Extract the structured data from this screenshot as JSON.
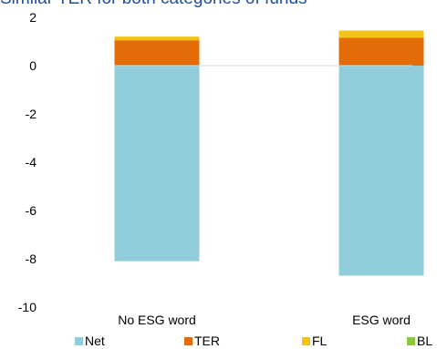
{
  "chart_data": {
    "type": "bar",
    "stacked": true,
    "title": "Similar TER for both categories of funds",
    "xlabel": "",
    "ylabel": "",
    "ylim": [
      -10,
      2
    ],
    "yticks": [
      2,
      0,
      -2,
      -4,
      -6,
      -8,
      -10
    ],
    "grid": false,
    "legend_position": "bottom",
    "categories": [
      "No ESG word",
      "ESG word"
    ],
    "series": [
      {
        "name": "Net",
        "color": "#92cddc",
        "values": [
          -8.1,
          -8.7
        ]
      },
      {
        "name": "TER",
        "color": "#e36c09",
        "values": [
          1.05,
          1.15
        ]
      },
      {
        "name": "FL",
        "color": "#f2c314",
        "values": [
          0.15,
          0.3
        ]
      },
      {
        "name": "BL",
        "color": "#8dc63f",
        "values": [
          0.0,
          0.0
        ]
      }
    ]
  }
}
